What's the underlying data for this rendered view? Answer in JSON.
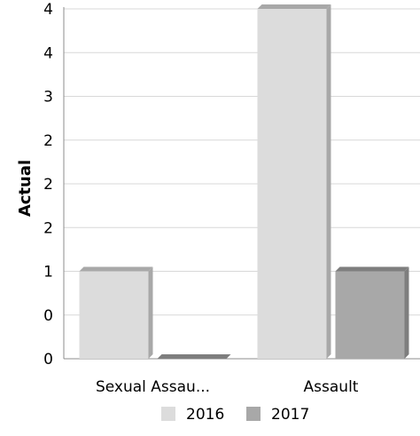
{
  "chart_data": {
    "type": "bar",
    "ylabel": "Actual",
    "categories": [
      "Sexual Assau...",
      "Assault"
    ],
    "series": [
      {
        "name": "2016",
        "values": [
          1,
          4
        ],
        "color": "#dcdcdc",
        "side_color": "#a8a8a8"
      },
      {
        "name": "2017",
        "values": [
          0,
          1
        ],
        "color": "#a8a8a8",
        "side_color": "#7e7e7e"
      }
    ],
    "y_tick_labels": [
      "0",
      "0",
      "1",
      "2",
      "2",
      "2",
      "3",
      "4",
      "4"
    ],
    "y_tick_values": [
      0,
      0.5,
      1,
      1.5,
      2,
      2.5,
      3,
      3.5,
      4
    ],
    "ylim": [
      0,
      4
    ],
    "grid": true,
    "legend_position": "bottom"
  }
}
